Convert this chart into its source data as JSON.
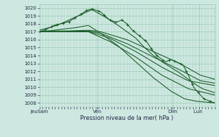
{
  "title": "Pression niveau de la mer( hPa )",
  "xlabel_ticks": [
    "JeuSam",
    "Ven",
    "Dim",
    "Lun "
  ],
  "xlabel_tick_positions": [
    0.0,
    0.33,
    0.76,
    0.91
  ],
  "ylim": [
    1007.5,
    1020.5
  ],
  "yticks": [
    1008,
    1009,
    1010,
    1011,
    1012,
    1013,
    1014,
    1015,
    1016,
    1017,
    1018,
    1019,
    1020
  ],
  "bg_color": "#cde8e0",
  "grid_color": "#9dc8b8",
  "line_color": "#1a5c28",
  "n_lines": 7,
  "line_width": 0.8,
  "figsize": [
    3.2,
    2.0
  ],
  "dpi": 100
}
